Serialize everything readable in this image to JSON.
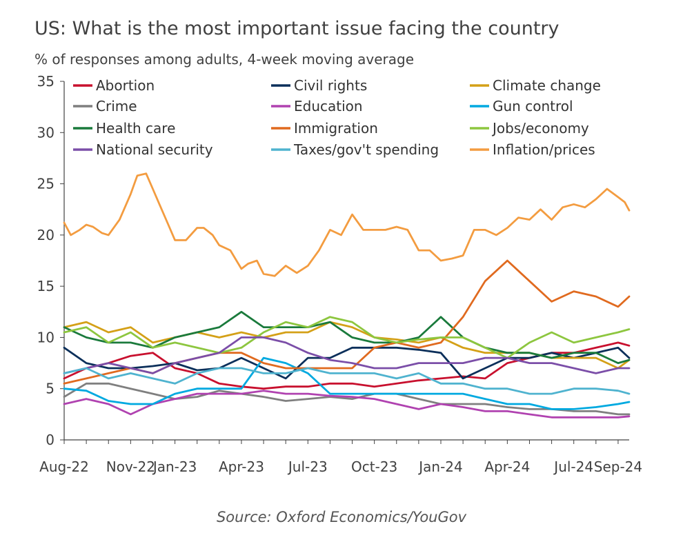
{
  "title": "US: What is the most important issue facing the country",
  "subtitle": "% of responses among adults, 4-week moving average",
  "source": "Source: Oxford Economics/YouGov",
  "chart_data": {
    "type": "line",
    "title": "US: What is the most important issue facing the country",
    "subtitle": "% of responses among adults, 4-week moving average",
    "ylabel": "",
    "xlabel": "",
    "ylim": [
      0,
      35
    ],
    "yticks": [
      0,
      5,
      10,
      15,
      20,
      25,
      30,
      35
    ],
    "xtick_labels": [
      "Aug-22",
      "Nov-22",
      "Jan-23",
      "Apr-23",
      "Jul-23",
      "Oct-23",
      "Jan-24",
      "Apr-24",
      "Jul-24",
      "Sep-24"
    ],
    "x_note": "x values are months since Aug-2022",
    "xlim": [
      0,
      25.5
    ],
    "grid": false,
    "legend_position": "top",
    "series": [
      {
        "name": "Abortion",
        "color": "#c8102e",
        "x": [
          0,
          1,
          2,
          3,
          4,
          5,
          6,
          7,
          8,
          9,
          10,
          11,
          12,
          13,
          14,
          15,
          16,
          17,
          18,
          19,
          20,
          21,
          22,
          23,
          24,
          25,
          25.5
        ],
        "y": [
          6,
          7,
          7.5,
          8.2,
          8.5,
          7,
          6.5,
          5.5,
          5.2,
          5,
          5.2,
          5.2,
          5.5,
          5.5,
          5.2,
          5.5,
          5.8,
          6,
          6.2,
          6,
          7.5,
          8,
          8.5,
          8.5,
          9,
          9.5,
          9.2
        ]
      },
      {
        "name": "Civil rights",
        "color": "#0b2f5a",
        "x": [
          0,
          1,
          2,
          3,
          4,
          5,
          6,
          7,
          8,
          9,
          10,
          11,
          12,
          13,
          14,
          15,
          16,
          17,
          18,
          19,
          20,
          21,
          22,
          23,
          24,
          25,
          25.5
        ],
        "y": [
          9,
          7.5,
          7,
          7,
          7.2,
          7.5,
          6.8,
          7,
          8,
          7,
          6,
          8,
          8,
          9,
          9,
          9,
          8.8,
          8.5,
          6,
          7,
          8,
          8,
          8.5,
          8,
          8.5,
          9,
          8
        ]
      },
      {
        "name": "Climate change",
        "color": "#d4a017",
        "x": [
          0,
          1,
          2,
          3,
          4,
          5,
          6,
          7,
          8,
          9,
          10,
          11,
          12,
          13,
          14,
          15,
          16,
          17,
          18,
          19,
          20,
          21,
          22,
          23,
          24,
          25,
          25.5
        ],
        "y": [
          11,
          11.5,
          10.5,
          11,
          9.5,
          10,
          10.5,
          10,
          10.5,
          10,
          10.5,
          10.5,
          11.5,
          11,
          10,
          9.8,
          9.5,
          10,
          9,
          8.5,
          8.5,
          8.5,
          8,
          8,
          8,
          7,
          7.8
        ]
      },
      {
        "name": "Crime",
        "color": "#7f7f7f",
        "x": [
          0,
          1,
          2,
          3,
          4,
          5,
          6,
          7,
          8,
          9,
          10,
          11,
          12,
          13,
          14,
          15,
          16,
          17,
          18,
          19,
          20,
          21,
          22,
          23,
          24,
          25,
          25.5
        ],
        "y": [
          4.2,
          5.5,
          5.5,
          5,
          4.5,
          4,
          4.2,
          4.8,
          4.5,
          4.2,
          3.8,
          4,
          4.2,
          4,
          4.5,
          4.5,
          4,
          3.5,
          3.5,
          3.5,
          3.2,
          3,
          3,
          2.8,
          2.8,
          2.5,
          2.5
        ]
      },
      {
        "name": "Education",
        "color": "#b042b0",
        "x": [
          0,
          1,
          2,
          3,
          4,
          5,
          6,
          7,
          8,
          9,
          10,
          11,
          12,
          13,
          14,
          15,
          16,
          17,
          18,
          19,
          20,
          21,
          22,
          23,
          24,
          25,
          25.5
        ],
        "y": [
          3.5,
          4,
          3.5,
          2.5,
          3.5,
          4,
          4.5,
          4.5,
          4.5,
          4.8,
          4.5,
          4.5,
          4.3,
          4.2,
          4,
          3.5,
          3,
          3.5,
          3.2,
          2.8,
          2.8,
          2.5,
          2.2,
          2.2,
          2.2,
          2.2,
          2.3
        ]
      },
      {
        "name": "Gun control",
        "color": "#00a9e0",
        "x": [
          0,
          1,
          2,
          3,
          4,
          5,
          6,
          7,
          8,
          9,
          10,
          11,
          12,
          13,
          14,
          15,
          16,
          17,
          18,
          19,
          20,
          21,
          22,
          23,
          24,
          25,
          25.5
        ],
        "y": [
          5,
          4.8,
          3.8,
          3.5,
          3.5,
          4.5,
          5,
          5,
          5,
          8,
          7.5,
          6.5,
          4.5,
          4.5,
          4.5,
          4.5,
          4.5,
          4.5,
          4.5,
          4,
          3.5,
          3.5,
          3,
          3,
          3.2,
          3.5,
          3.7
        ]
      },
      {
        "name": "Health care",
        "color": "#1a7a3c",
        "x": [
          0,
          1,
          2,
          3,
          4,
          5,
          6,
          7,
          8,
          9,
          10,
          11,
          12,
          13,
          14,
          15,
          16,
          17,
          18,
          19,
          20,
          21,
          22,
          23,
          24,
          25,
          25.5
        ],
        "y": [
          11,
          10,
          9.5,
          9.5,
          9,
          10,
          10.5,
          11,
          12.5,
          11,
          11,
          11,
          11.5,
          10,
          9.5,
          9.5,
          10,
          12,
          10,
          9,
          8.5,
          8.5,
          8,
          8.5,
          8.5,
          7.5,
          7.8
        ]
      },
      {
        "name": "Immigration",
        "color": "#e06a1f",
        "x": [
          0,
          1,
          2,
          3,
          4,
          5,
          6,
          7,
          8,
          9,
          10,
          11,
          12,
          13,
          14,
          15,
          16,
          17,
          18,
          19,
          20,
          21,
          22,
          23,
          24,
          25,
          25.5
        ],
        "y": [
          5.5,
          6,
          6.5,
          7,
          6.5,
          7.5,
          8,
          8.5,
          8.5,
          7.5,
          7,
          7,
          7,
          7,
          9,
          9.5,
          9,
          9.5,
          12,
          15.5,
          17.5,
          15.5,
          13.5,
          14.5,
          14,
          13,
          14
        ]
      },
      {
        "name": "Jobs/economy",
        "color": "#8dc63f",
        "x": [
          0,
          1,
          2,
          3,
          4,
          5,
          6,
          7,
          8,
          9,
          10,
          11,
          12,
          13,
          14,
          15,
          16,
          17,
          18,
          19,
          20,
          21,
          22,
          23,
          24,
          25,
          25.5
        ],
        "y": [
          10.5,
          11,
          9.5,
          10.5,
          9,
          9.5,
          9,
          8.5,
          9,
          10.5,
          11.5,
          11,
          12,
          11.5,
          10,
          9.5,
          9.8,
          10,
          10,
          9,
          8,
          9.5,
          10.5,
          9.5,
          10,
          10.5,
          10.8
        ]
      },
      {
        "name": "National security",
        "color": "#7b4ea8",
        "x": [
          0,
          1,
          2,
          3,
          4,
          5,
          6,
          7,
          8,
          9,
          10,
          11,
          12,
          13,
          14,
          15,
          16,
          17,
          18,
          19,
          20,
          21,
          22,
          23,
          24,
          25,
          25.5
        ],
        "y": [
          6.5,
          7,
          7.5,
          7,
          6.5,
          7.5,
          8,
          8.5,
          10,
          10,
          9.5,
          8.5,
          7.8,
          7.5,
          7,
          7,
          7.5,
          7.5,
          7.5,
          8,
          8,
          7.5,
          7.5,
          7,
          6.5,
          7,
          7
        ]
      },
      {
        "name": "Taxes/gov't spending",
        "color": "#4fb3cf",
        "x": [
          0,
          1,
          2,
          3,
          4,
          5,
          6,
          7,
          8,
          9,
          10,
          11,
          12,
          13,
          14,
          15,
          16,
          17,
          18,
          19,
          20,
          21,
          22,
          23,
          24,
          25,
          25.5
        ],
        "y": [
          6.5,
          7,
          6,
          6.5,
          6,
          5.5,
          6.5,
          7,
          7,
          6.5,
          6.5,
          7,
          6.5,
          6.5,
          6.5,
          6,
          6.5,
          5.5,
          5.5,
          5,
          5,
          4.5,
          4.5,
          5,
          5,
          4.8,
          4.5
        ]
      },
      {
        "name": "Inflation/prices",
        "color": "#f39c40",
        "x": [
          0,
          0.3,
          0.7,
          1,
          1.3,
          1.7,
          2,
          2.5,
          3,
          3.3,
          3.7,
          4,
          4.3,
          4.7,
          5,
          5.5,
          6,
          6.3,
          6.7,
          7,
          7.5,
          8,
          8.3,
          8.7,
          9,
          9.5,
          10,
          10.5,
          11,
          11.5,
          12,
          12.5,
          13,
          13.5,
          14,
          14.5,
          15,
          15.5,
          16,
          16.5,
          17,
          17.5,
          18,
          18.5,
          19,
          19.5,
          20,
          20.5,
          21,
          21.5,
          22,
          22.5,
          23,
          23.5,
          24,
          24.5,
          25,
          25.3,
          25.5
        ],
        "y": [
          21.2,
          20,
          20.5,
          21,
          20.8,
          20.2,
          20,
          21.5,
          24,
          25.8,
          26,
          24.5,
          23,
          21,
          19.5,
          19.5,
          20.7,
          20.7,
          20,
          19,
          18.5,
          16.7,
          17.2,
          17.5,
          16.2,
          16,
          17,
          16.3,
          17,
          18.5,
          20.5,
          20,
          22,
          20.5,
          20.5,
          20.5,
          20.8,
          20.5,
          18.5,
          18.5,
          17.5,
          17.7,
          18,
          20.5,
          20.5,
          20,
          20.7,
          21.7,
          21.5,
          22.5,
          21.5,
          22.7,
          23,
          22.7,
          23.5,
          24.5,
          23.7,
          23.2,
          22.4
        ]
      }
    ]
  }
}
